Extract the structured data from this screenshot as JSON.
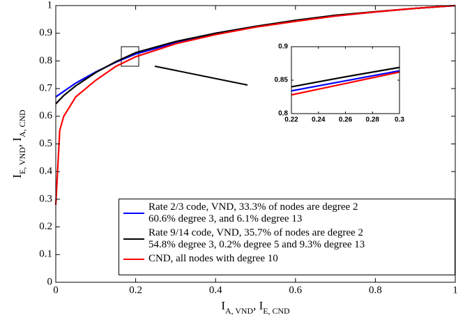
{
  "chart_data": [
    {
      "type": "line",
      "xlabel": [
        "I",
        "A, VND",
        ", I",
        "E, CND"
      ],
      "ylabel": [
        "I",
        "E, VND",
        ", I",
        "A, CND"
      ],
      "x": [
        0,
        0.01,
        0.02,
        0.05,
        0.1,
        0.15,
        0.2,
        0.3,
        0.4,
        0.5,
        0.6,
        0.7,
        0.8,
        0.9,
        1
      ],
      "series": [
        {
          "name": "Rate 2/3 code, VND, 33.3% of nodes are degree 2\n60.6% degree 3, and 6.1% degree 13",
          "color": "#0000ff",
          "values": [
            0.67,
            0.68,
            0.69,
            0.72,
            0.76,
            0.795,
            0.825,
            0.865,
            0.9,
            0.925,
            0.945,
            0.962,
            0.977,
            0.99,
            1
          ]
        },
        {
          "name": "Rate 9/14 code, VND, 35.7% of nodes are degree 2\n54.8% degree 3, 0.2% degree 5 and 9.3% degree 13",
          "color": "#000000",
          "values": [
            0.645,
            0.66,
            0.675,
            0.71,
            0.758,
            0.797,
            0.83,
            0.87,
            0.9,
            0.925,
            0.947,
            0.965,
            0.978,
            0.99,
            1
          ]
        },
        {
          "name": "CND, all nodes with degree 10",
          "color": "#ff0000",
          "values": [
            0.28,
            0.55,
            0.6,
            0.67,
            0.73,
            0.78,
            0.815,
            0.862,
            0.895,
            0.922,
            0.943,
            0.962,
            0.977,
            0.99,
            1
          ]
        }
      ],
      "xlim": [
        0,
        1
      ],
      "ylim": [
        0,
        1
      ],
      "xticks": [
        0,
        0.2,
        0.4,
        0.6,
        0.8,
        1
      ],
      "yticks": [
        0,
        0.1,
        0.2,
        0.3,
        0.4,
        0.5,
        0.6,
        0.7,
        0.8,
        0.9,
        1
      ]
    },
    {
      "type": "line",
      "x": [
        0.22,
        0.26,
        0.3
      ],
      "series": [
        {
          "color": "#0000ff",
          "values": [
            0.834,
            0.849,
            0.864
          ]
        },
        {
          "color": "#000000",
          "values": [
            0.84,
            0.855,
            0.869
          ]
        },
        {
          "color": "#ff0000",
          "values": [
            0.828,
            0.845,
            0.862
          ]
        }
      ],
      "xlim": [
        0.22,
        0.3
      ],
      "ylim": [
        0.8,
        0.9
      ],
      "xticks": [
        0.22,
        0.24,
        0.26,
        0.28,
        0.3
      ],
      "yticks": [
        0.8,
        0.85,
        0.9
      ]
    }
  ]
}
